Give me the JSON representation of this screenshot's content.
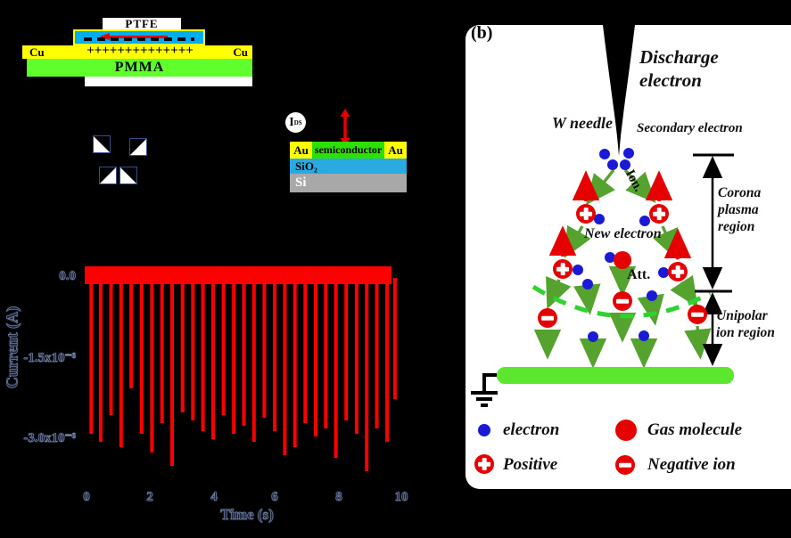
{
  "teng": {
    "ptfe_label": "PTFE",
    "cu_left": "Cu",
    "cu_right": "Cu",
    "plus_charges": "++++++++++++++",
    "pmma_label": "PMMA"
  },
  "photodetector": {
    "ids_main": "I",
    "ids_sub": "DS",
    "au_left": "Au",
    "semiconductor_label": "semiconductor",
    "au_right": "Au",
    "sio2_label": "SiO₂",
    "si_label": "Si"
  },
  "chart_data": {
    "type": "line",
    "title": "",
    "xlabel": "Time (s)",
    "ylabel": "Current (A)",
    "xlim": [
      0,
      10
    ],
    "ylim_amps": [
      -3.6e-06,
      3e-07
    ],
    "x_ticks": [
      "0",
      "2",
      "4",
      "6",
      "8",
      "10"
    ],
    "y_ticks": [
      "0.0",
      "-1.5x10⁻⁶",
      "-3.0x10⁻⁶"
    ],
    "grid": false,
    "legend": "none",
    "series_color": "#FF0000",
    "baseline_amps": 0.0,
    "baseline_noise_band_amps": [
      2e-07,
      -2e-07
    ],
    "spike_units": "t in seconds, peak current in 1e-6 A",
    "spikes": [
      [
        0.15,
        -2.95
      ],
      [
        0.45,
        -3.1
      ],
      [
        0.78,
        -2.6
      ],
      [
        1.1,
        -3.2
      ],
      [
        1.42,
        -2.1
      ],
      [
        1.75,
        -2.95
      ],
      [
        2.08,
        -3.3
      ],
      [
        2.4,
        -2.75
      ],
      [
        2.72,
        -3.55
      ],
      [
        3.05,
        -2.55
      ],
      [
        3.38,
        -2.7
      ],
      [
        3.7,
        -2.9
      ],
      [
        4.02,
        -3.05
      ],
      [
        4.35,
        -2.6
      ],
      [
        4.68,
        -2.95
      ],
      [
        5.0,
        -2.8
      ],
      [
        5.32,
        -3.1
      ],
      [
        5.65,
        -2.65
      ],
      [
        5.98,
        -2.9
      ],
      [
        6.3,
        -3.35
      ],
      [
        6.62,
        -3.2
      ],
      [
        6.95,
        -2.75
      ],
      [
        7.28,
        -3.0
      ],
      [
        7.6,
        -2.85
      ],
      [
        7.92,
        -3.4
      ],
      [
        8.25,
        -2.7
      ],
      [
        8.58,
        -2.95
      ],
      [
        8.9,
        -3.65
      ],
      [
        9.22,
        -2.85
      ],
      [
        9.55,
        -3.1
      ],
      [
        9.8,
        -2.3
      ]
    ]
  },
  "panel_b": {
    "label": "(b)",
    "discharge_line1": "Discharge",
    "discharge_line2": "electron",
    "w_needle": "W needle",
    "secondary_electron": "Secondary electron",
    "ion_label": "Ion.",
    "new_electron": "New electron",
    "att_label": "Att.",
    "corona_line1": "Corona",
    "corona_line2": "plasma",
    "corona_line3": "region",
    "unipolar_line1": "Unipolar",
    "unipolar_line2": "ion region",
    "legend": {
      "electron": "electron",
      "gas_molecule": "Gas molecule",
      "positive": "Positive",
      "negative": "Negative ion"
    }
  },
  "colors": {
    "background": "#000000",
    "chart_red": "#FF0000",
    "accent_red": "#E60000",
    "electron_blue": "#1A1AD6",
    "arrow_green": "#55A22F",
    "dashed_green": "#2FD32F",
    "collector_green": "#5CE62E",
    "ptfe_cyan": "#00AEEF",
    "sio2_blue": "#29ABE2",
    "electrode_yellow": "#FFFF00",
    "pmma_green": "#5FFF2E",
    "semiconductor_green": "#2EE000",
    "si_gray": "#A8A8A8"
  }
}
